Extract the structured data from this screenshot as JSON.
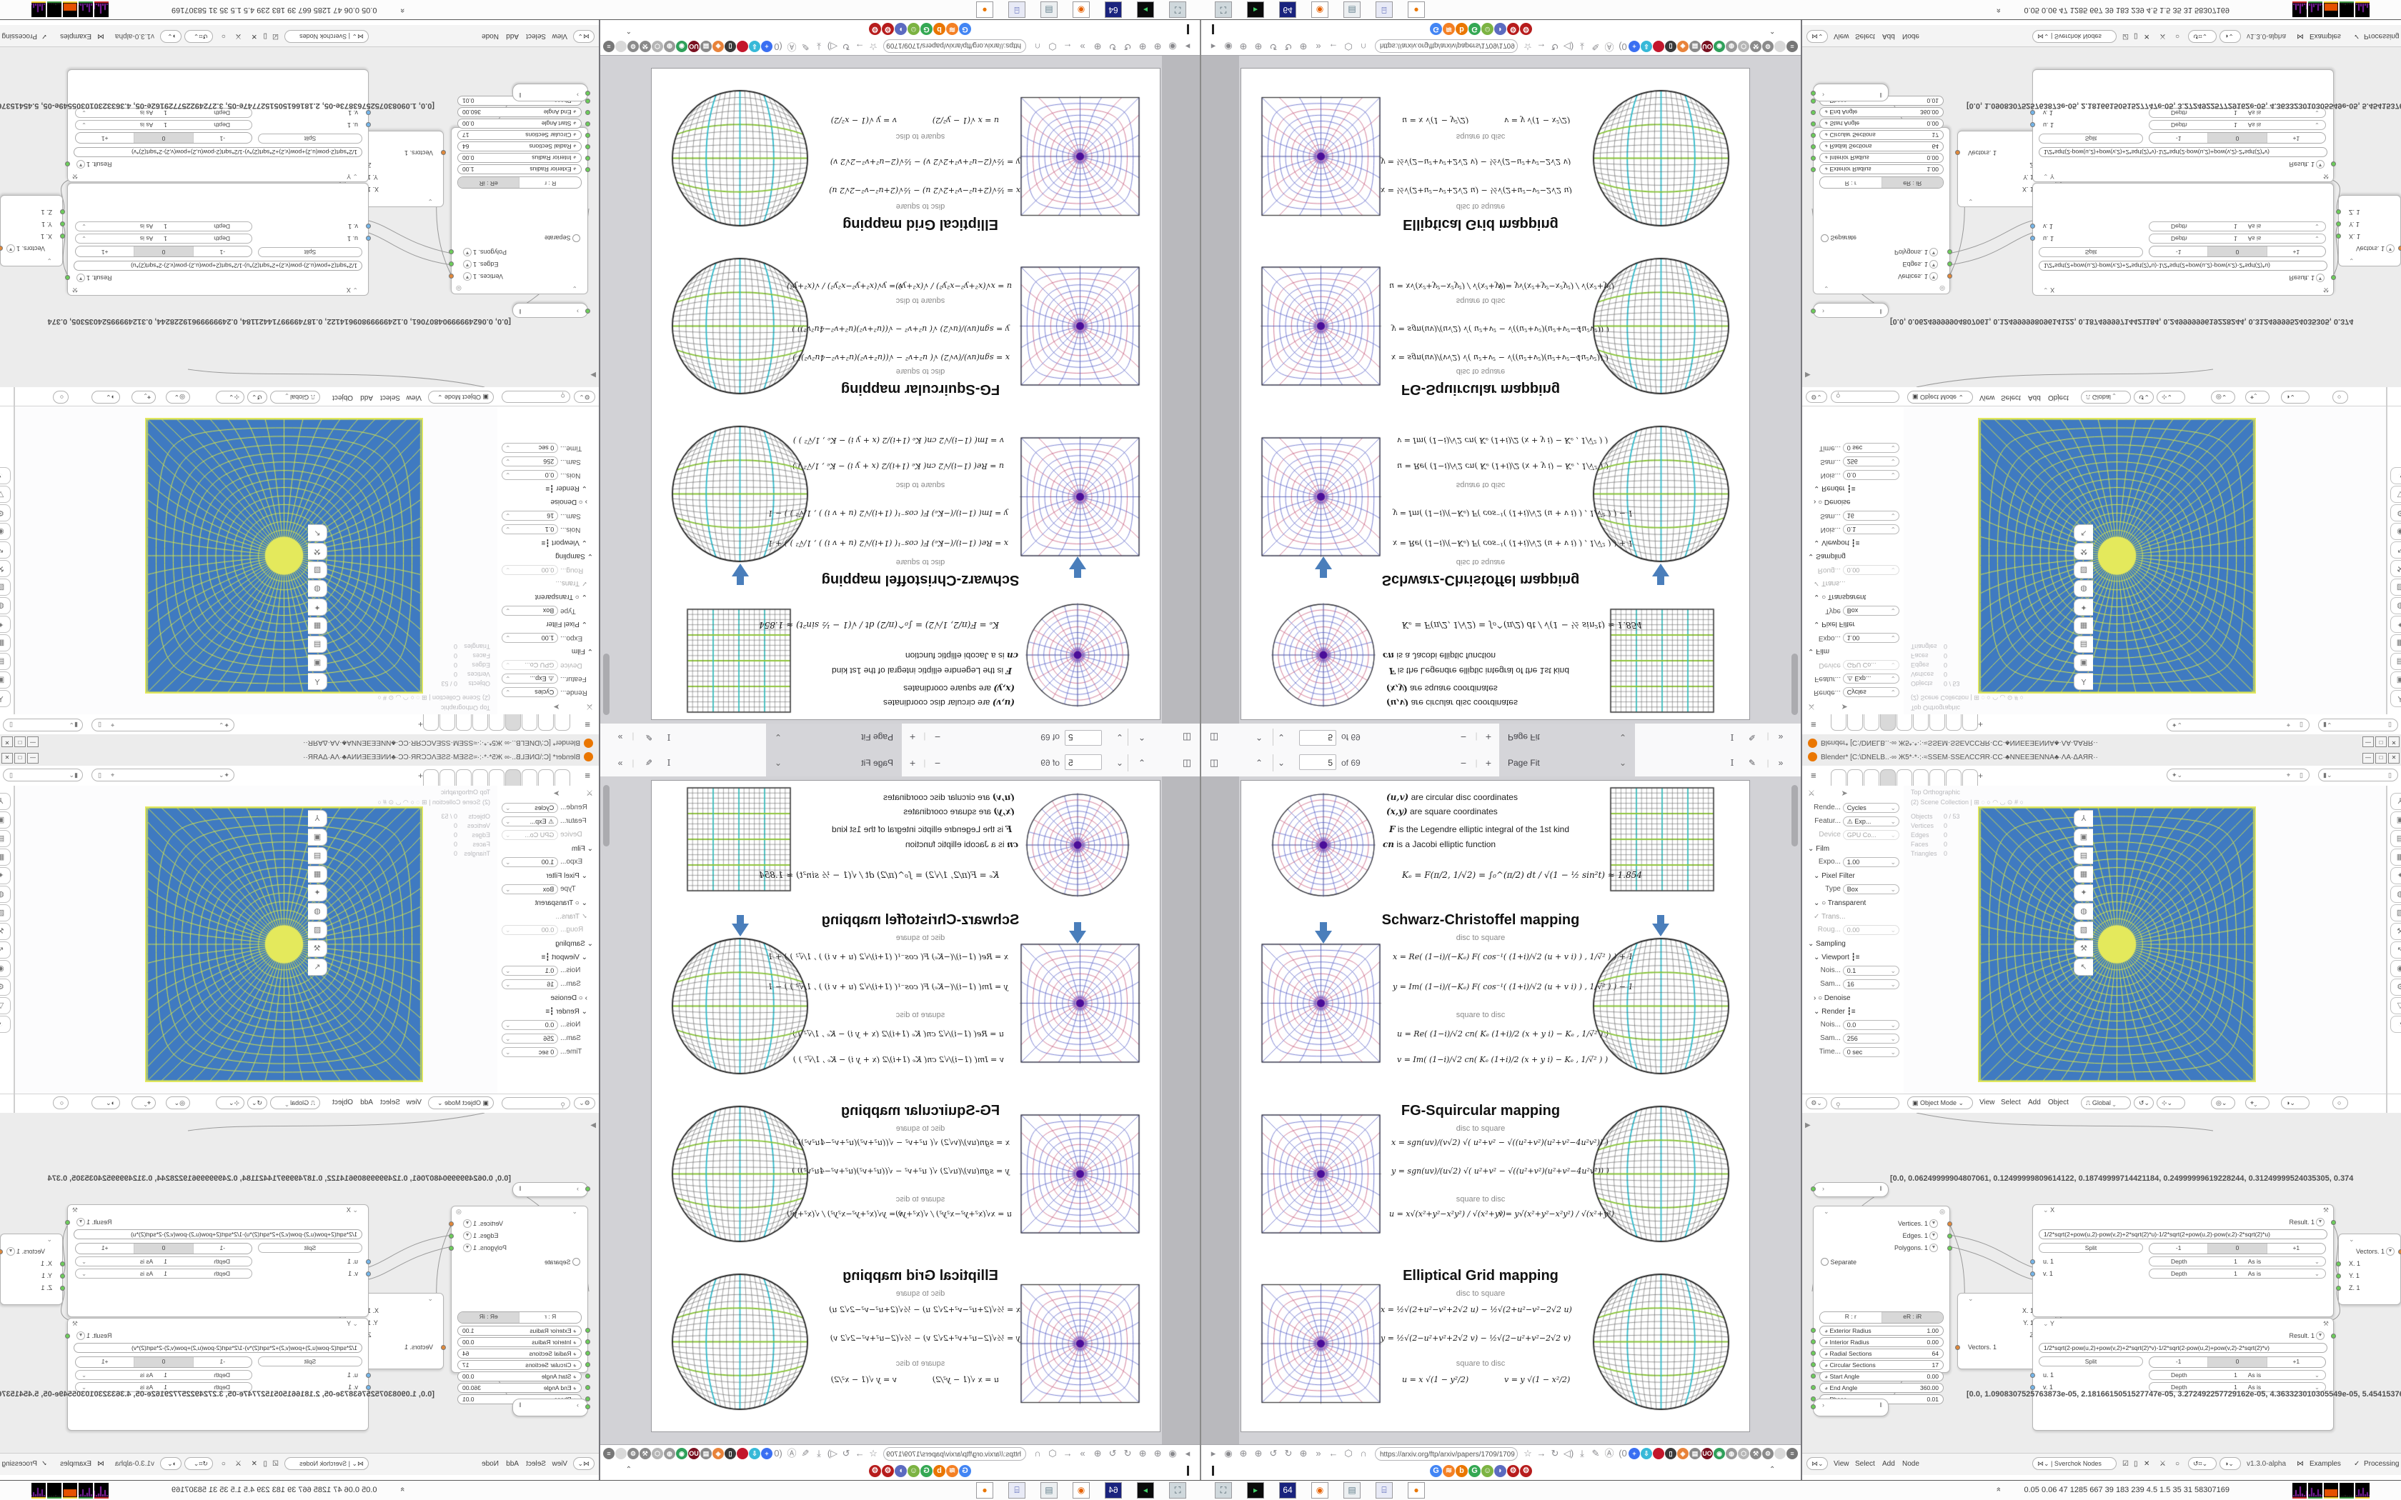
{
  "pdf_viewer": {
    "toolbar": {
      "page_input": "5",
      "page_count_label": "of 69",
      "zoom_out_label": "−",
      "zoom_in_label": "+",
      "zoom_select_value": "Page Fit",
      "prev_label": "⌃",
      "next_label": "⌄"
    },
    "url": "https://arxiv.org/ftp/arxiv/papers/1709/1709",
    "page": {
      "defs": [
        {
          "term": "(u,v)",
          "rest": " are circular disc coordinates"
        },
        {
          "term": "(x,y)",
          "rest": " are square coordinates"
        },
        {
          "term": "F",
          "rest": " is the Legendre elliptic integral of the 1st kind"
        },
        {
          "term": "cn",
          "rest": " is a Jacobi elliptic function"
        }
      ],
      "ke_formula": "Kₑ =  F(π/2, 1/√2) = ∫₀^(π/2) dt / √(1 − ½ sin²t)  ≈ 1.854",
      "sections": [
        {
          "title": "Schwarz-Christoffel mapping",
          "sub1": "disc to square",
          "f1": "x = Re( (1−i)/(−Kₑ) F( cos⁻¹( (1+i)/√2 (u + v i) ) , 1/√̅² ) ) + 1",
          "f2": "y = Im( (1−i)/(−Kₑ) F( cos⁻¹( (1+i)/√2 (u + v i) ) , 1/√̅² ) ) − 1",
          "sub2": "square to disc",
          "f3": "u = Re( (1−i)/√2  cn( Kₑ (1+i)/2 (x + y i) − Kₑ , 1/√̅² ) )",
          "f4": "v = Im( (1−i)/√2  cn( Kₑ (1+i)/2 (x + y i) − Kₑ , 1/√̅² ) )"
        },
        {
          "title": "FG-Squircular mapping",
          "sub1": "disc to square",
          "f1": "x = sgn(uv)/(v√2) √( u²+v² − √((u²+v²)(u²+v²−4u²v²)) )",
          "f2": "y = sgn(uv)/(u√2) √( u²+v² − √((u²+v²)(u²+v²−4u²v²)) )",
          "sub2": "square to disc",
          "f3": "u = x√(x²+y²−x²y²) / √(x²+y²)",
          "f4": "v = y√(x²+y²−x²y²) / √(x²+y²)"
        },
        {
          "title": "Elliptical Grid mapping",
          "sub1": "disc to square",
          "f1": "x = ½√(2+u²−v²+2√2 u)  −  ½√(2+u²−v²−2√2 u)",
          "f2": "y = ½√(2−u²+v²+2√2 v)  −  ½√(2−u²+v²−2√2 v)",
          "sub2": "square to disc",
          "f3": "u = x √(1 − y²/2)",
          "f4": "v = y √(1 − x²/2)"
        }
      ]
    },
    "nav_icons_left": [
      "▸",
      "◉",
      "⊕",
      "⊕",
      "↺",
      "↻",
      "⊕",
      "»",
      "←",
      "⬡",
      "∩"
    ],
    "nav_icons_mid": [
      "☆",
      "→",
      "↻",
      "◁)",
      "⤓",
      "✎",
      "Ⓐ",
      "(0"
    ],
    "extensions": [
      {
        "glyph": "+",
        "color": "#3a6ff2"
      },
      {
        "glyph": "⇩",
        "color": "#36b9d8"
      },
      {
        "glyph": "",
        "color": "#c3172c"
      },
      {
        "glyph": "▯",
        "color": "#3a3a3a"
      },
      {
        "glyph": "◈",
        "color": "#e8833a"
      },
      {
        "glyph": "▤",
        "color": "#8a8a8a"
      },
      {
        "glyph": "UO",
        "color": "#7a1020"
      },
      {
        "glyph": "◉",
        "color": "#2fa05a"
      },
      {
        "glyph": "◍",
        "color": "#9a9a9a"
      },
      {
        "glyph": "⬡",
        "color": "#b5b5b5"
      },
      {
        "glyph": "⚒",
        "color": "#8a8a8a"
      },
      {
        "glyph": "⚙",
        "color": "#8a8a8a"
      },
      {
        "glyph": "",
        "color": "#d9d9d9"
      },
      {
        "glyph": "≡",
        "color": "#777"
      }
    ],
    "bookmarks": [
      {
        "glyph": "G",
        "color": "#4285f4"
      },
      {
        "glyph": "≋",
        "color": "#f48024"
      },
      {
        "glyph": "b",
        "color": "#ea7600"
      },
      {
        "glyph": "G",
        "color": "#34a853"
      },
      {
        "glyph": "☺",
        "color": "#7cb342"
      },
      {
        "glyph": "◗",
        "color": "#5c6bc0"
      },
      {
        "glyph": "⚙",
        "color": "#b71c1c"
      },
      {
        "glyph": "⚙",
        "color": "#b71c1c"
      }
    ],
    "bookmarks_collapse": "⌃"
  },
  "taskbar": {
    "apps": [
      {
        "glyph": "⛶",
        "bg": "#cfd8dc",
        "fg": "#455a64"
      },
      {
        "glyph": "▸",
        "bg": "#0a0a0a",
        "fg": "#43d36a"
      },
      {
        "glyph": "64",
        "bg": "#1a237e",
        "fg": "#ffffff"
      },
      {
        "glyph": "◉",
        "bg": "#ffffff",
        "fg": "#e66000"
      },
      {
        "glyph": "▤",
        "bg": "#eceff1",
        "fg": "#607d8b"
      },
      {
        "glyph": "⌸",
        "bg": "#e8eaf6",
        "fg": "#3949ab"
      },
      {
        "glyph": "●",
        "bg": "#ffffff",
        "fg": "#ea7600"
      }
    ],
    "monitor_numbers": "0.05  0.06   47   1285  667   39   183   239   4.5   1.5   35   31   58307169",
    "monitor_up_glyph": "»"
  },
  "blender": {
    "title": "Blender*  [C:\\DNELB..·∞ Ж5*·*·:·≈SSEM·SSEΛCCЯR·CC·♣NNEEƎENNA♣·ΛA·ΔAЯR··",
    "window_buttons": [
      "—",
      "□",
      "✕"
    ],
    "topbar_menu_glyph": "≡",
    "workspace_plus": "+",
    "viewport": {
      "view_label": "Top Orthographic",
      "collection_label": "(2) Scene Collection | ⊞ ◌ ○ ◠ ◡ ⊙ # ○",
      "stats": [
        [
          "Objects",
          "0 / 53"
        ],
        [
          "Vertices",
          "0"
        ],
        [
          "Edges",
          "0"
        ],
        [
          "Faces",
          "0"
        ],
        [
          "Triangles",
          "0"
        ]
      ],
      "mode": "Object Mode",
      "menus": [
        "View",
        "Select",
        "Add",
        "Object"
      ],
      "orientation": "Global"
    },
    "properties": {
      "tabs": [
        "⅄",
        "▣",
        "▤",
        "▦",
        "✦",
        "◍",
        "▧",
        "⚒",
        "↖",
        "◉",
        "⚙",
        "▽",
        "◔"
      ],
      "rows": [
        {
          "t": "dd",
          "label": "Rende...",
          "value": "Cycles"
        },
        {
          "t": "dd",
          "label": "Featur...",
          "value": "⚠ Exp..."
        },
        {
          "t": "dd",
          "label": "Device",
          "value": "GPU Co...",
          "dim": true
        },
        {
          "t": "sec",
          "label": "⌄ Film"
        },
        {
          "t": "dd",
          "label": "Expo...",
          "value": "1.00"
        },
        {
          "t": "sub",
          "label": "⌄ Pixel Filter"
        },
        {
          "t": "dd",
          "label": "Type",
          "value": "Box"
        },
        {
          "t": "sub",
          "label": "⌄ ○ Transparent"
        },
        {
          "t": "sub",
          "label": "✓ Trans...",
          "dim": true
        },
        {
          "t": "dd",
          "label": "Roug...",
          "value": "0.00",
          "dim": true
        },
        {
          "t": "sec",
          "label": "⌄ Sampling"
        },
        {
          "t": "sub",
          "label": "⌄ Viewport ┇≡"
        },
        {
          "t": "dd",
          "label": "Nois...",
          "value": "0.1"
        },
        {
          "t": "dd",
          "label": "Sam...",
          "value": "16"
        },
        {
          "t": "sub",
          "label": "› ○ Denoise"
        },
        {
          "t": "sub",
          "label": "⌄ Render ┇≡"
        },
        {
          "t": "dd",
          "label": "Nois...",
          "value": "0.0"
        },
        {
          "t": "dd",
          "label": "Sam...",
          "value": "256"
        },
        {
          "t": "dd",
          "label": "Time...",
          "value": "0 sec"
        }
      ]
    },
    "node_editor": {
      "menus": [
        "View",
        "Select",
        "Add",
        "Node"
      ],
      "tree_name": "Sverchok Nodes",
      "version": "v1.3.0-alpha",
      "examples_label": "Examples",
      "processing_label": "Processing",
      "array1": "[0.0, 0.06249999904807061, 0.12499999809614122, 0.18749999714421184, 0.24999999619228244, 0.31249999524035305, 0.374",
      "array2": "[0.0, 1.0908307525763873e-05, 2.1816615051527747e-05, 3.272492257729162e-05, 4.363323010305549e-05, 5.454153762881936",
      "disc_node": {
        "outputs": [
          [
            "Vertices. 1",
            "so"
          ],
          [
            "Edges. 1",
            "sg"
          ],
          [
            "Polygons. 1",
            "sg"
          ]
        ],
        "separate_label": "Separate",
        "seg": [
          "R : r",
          "eR : iR"
        ],
        "fields": [
          [
            "Exterior Radius",
            "1.00"
          ],
          [
            "Interior Radius",
            "0.00"
          ],
          [
            "Radial Sections",
            "64"
          ],
          [
            "Circular Sections",
            "17"
          ],
          [
            "Start Angle",
            "0.00"
          ],
          [
            "End Angle",
            "360.00"
          ],
          [
            "Phase",
            "0.01"
          ]
        ]
      },
      "x_node": {
        "title": "X",
        "result": "Result. 1",
        "formula": "1/2*sqrt(2+pow(u,2)-pow(v,2)+2*sqrt(2)*u)-1/2*sqrt(2+pow(u,2)-pow(v,2)-2*sqrt(2)*u)",
        "seg": [
          "-1",
          "0",
          "+1"
        ],
        "split": "Split",
        "inputs": [
          "u. 1",
          "v. 1"
        ],
        "depth_rows": [
          [
            "Depth",
            "1",
            "As is"
          ],
          [
            "Depth",
            "1",
            "As is"
          ]
        ]
      },
      "y_node": {
        "title": "Y",
        "result": "Result. 1",
        "formula": "1/2*sqrt(2-pow(u,2)+pow(v,2)+2*sqrt(2)*v)-1/2*sqrt(2-pow(u,2)+pow(v,2)-2*sqrt(2)*v)",
        "seg": [
          "-1",
          "0",
          "+1"
        ],
        "split": "Split",
        "inputs": [
          "u. 1",
          "v. 1"
        ],
        "depth_rows": [
          [
            "Depth",
            "1",
            "As is"
          ],
          [
            "Depth",
            "1",
            "As is"
          ]
        ]
      },
      "combine_node": {
        "output": "Vectors. 1",
        "inputs": [
          "X. 1",
          "Y. 1",
          "Z. 1"
        ]
      },
      "vecout_node": {
        "outputs": [
          "X. 1",
          "Y. 1",
          "Z"
        ],
        "input": "Vectors. 1"
      }
    }
  },
  "figures": {
    "purple_disc": {
      "type": "polar_disc",
      "rings": 9,
      "rays": 24,
      "line_blue": "#5b63c8",
      "line_red": "#c65b7c",
      "center": "#4b0d99"
    },
    "purple_square": {
      "type": "polar_square",
      "rings": 10,
      "rays": 24,
      "line_blue": "#5b63c8",
      "line_red": "#c65b7c",
      "center": "#4b0d99"
    },
    "bw_square": {
      "type": "grid_square",
      "n": 20,
      "gray": "#6a6a6a",
      "cyan": "#3bbcbc",
      "green": "#8fc43c"
    },
    "bw_disc": {
      "type": "grid_disc",
      "n": 20,
      "gray": "#555555",
      "cyan": "#2fb9c9",
      "green": "#86c236"
    },
    "blender_grid": {
      "type": "blender_polar",
      "rings": 16,
      "rays": 64,
      "bg": "#3f7ac1",
      "line": "#d4e34c",
      "border": "#e4e95c"
    },
    "monitor_graphs": [
      {
        "color": "#8e24aa",
        "base": "#d32f2f",
        "bars": [
          2,
          9,
          3,
          14,
          4,
          2,
          8
        ]
      },
      {
        "color": "#7b1fa2",
        "base": "#43a047",
        "bars": [
          3,
          12,
          5,
          2,
          10,
          3,
          2
        ]
      },
      {
        "color": "#e65100",
        "base": "#fdd835",
        "bars": [
          11,
          11,
          11,
          11,
          11,
          11,
          11
        ]
      },
      {
        "color": "#222222",
        "base": "#43a047",
        "bars": [
          1,
          1,
          2,
          1,
          1,
          1,
          1
        ]
      },
      {
        "color": "#7b1fa2",
        "base": "#fdd835",
        "bars": [
          2,
          10,
          4,
          12,
          3,
          6,
          2
        ]
      }
    ]
  }
}
